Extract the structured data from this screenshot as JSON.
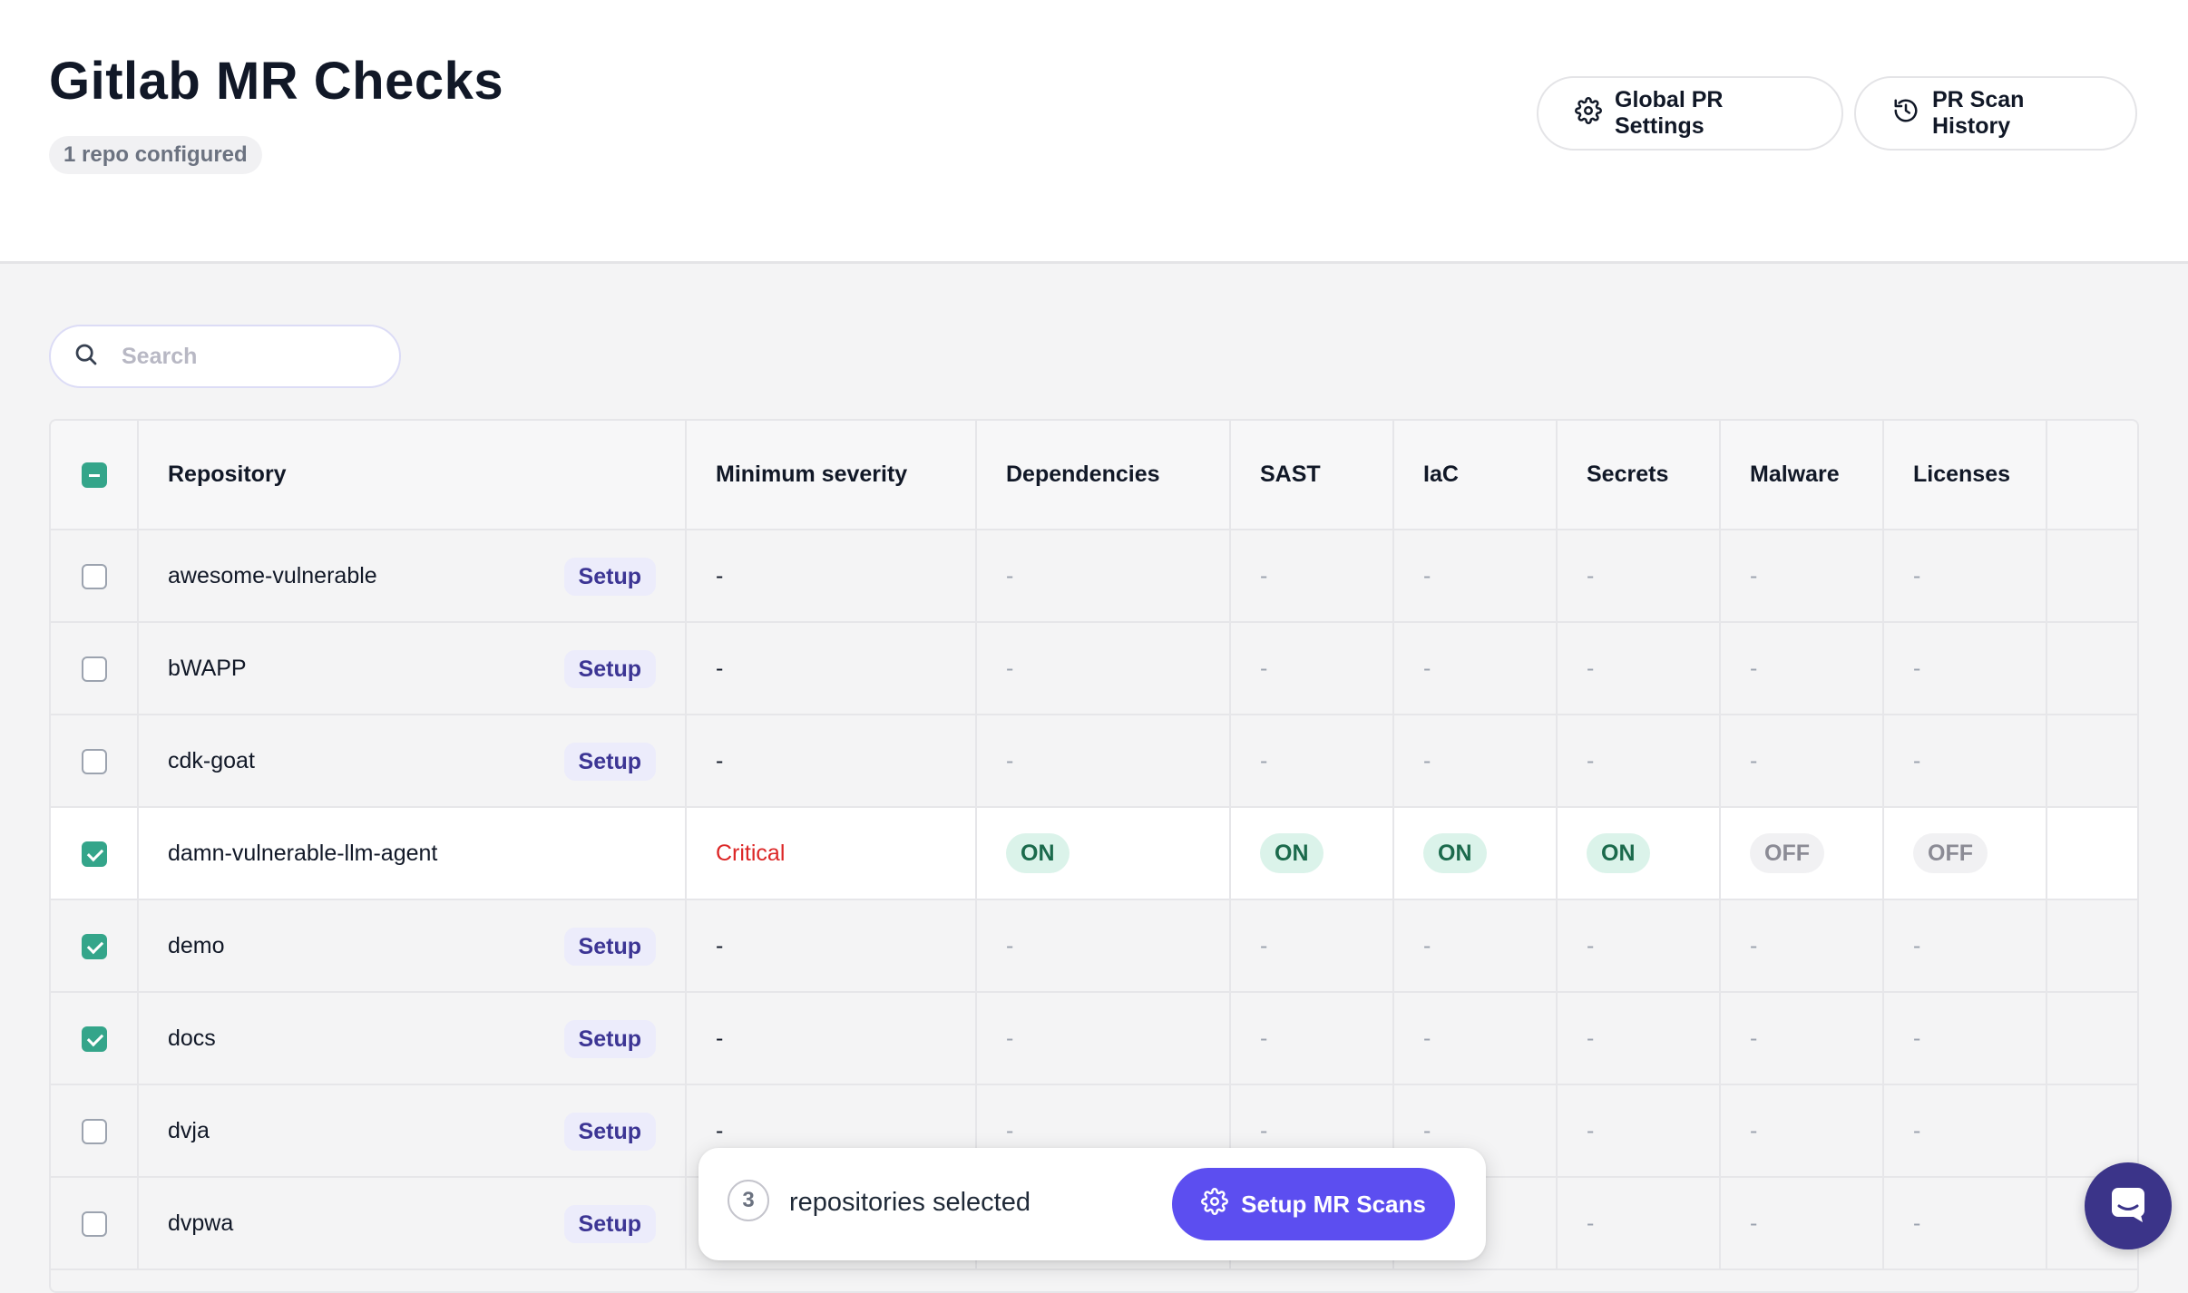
{
  "header": {
    "title": "Gitlab MR Checks",
    "repo_badge": "1 repo configured",
    "global_settings_label": "Global PR Settings",
    "scan_history_label": "PR Scan History"
  },
  "search": {
    "placeholder": "Search",
    "value": ""
  },
  "table": {
    "columns": [
      "Repository",
      "Minimum severity",
      "Dependencies",
      "SAST",
      "IaC",
      "Secrets",
      "Malware",
      "Licenses"
    ],
    "setup_label": "Setup",
    "rows": [
      {
        "name": "awesome-vulnerable",
        "checked": false,
        "configured": false,
        "severity": "-",
        "dependencies": "-",
        "sast": "-",
        "iac": "-",
        "secrets": "-",
        "malware": "-",
        "licenses": "-"
      },
      {
        "name": "bWAPP",
        "checked": false,
        "configured": false,
        "severity": "-",
        "dependencies": "-",
        "sast": "-",
        "iac": "-",
        "secrets": "-",
        "malware": "-",
        "licenses": "-"
      },
      {
        "name": "cdk-goat",
        "checked": false,
        "configured": false,
        "severity": "-",
        "dependencies": "-",
        "sast": "-",
        "iac": "-",
        "secrets": "-",
        "malware": "-",
        "licenses": "-"
      },
      {
        "name": "damn-vulnerable-llm-agent",
        "checked": true,
        "configured": true,
        "severity": "Critical",
        "dependencies": "ON",
        "sast": "ON",
        "iac": "ON",
        "secrets": "ON",
        "malware": "OFF",
        "licenses": "OFF"
      },
      {
        "name": "demo",
        "checked": true,
        "configured": false,
        "severity": "-",
        "dependencies": "-",
        "sast": "-",
        "iac": "-",
        "secrets": "-",
        "malware": "-",
        "licenses": "-"
      },
      {
        "name": "docs",
        "checked": true,
        "configured": false,
        "severity": "-",
        "dependencies": "-",
        "sast": "-",
        "iac": "-",
        "secrets": "-",
        "malware": "-",
        "licenses": "-"
      },
      {
        "name": "dvja",
        "checked": false,
        "configured": false,
        "severity": "-",
        "dependencies": "-",
        "sast": "-",
        "iac": "-",
        "secrets": "-",
        "malware": "-",
        "licenses": "-"
      },
      {
        "name": "dvpwa",
        "checked": false,
        "configured": false,
        "severity": "-",
        "dependencies": "-",
        "sast": "-",
        "iac": "-",
        "secrets": "-",
        "malware": "-",
        "licenses": "-"
      }
    ]
  },
  "selection": {
    "count": "3",
    "text": "repositories selected",
    "action_label": "Setup MR Scans"
  },
  "icons": {
    "settings": "gear-icon",
    "history": "history-icon",
    "search": "search-icon",
    "chat": "chat-icon"
  },
  "colors": {
    "accent": "#5c4ef0",
    "checkbox_checked": "#34a58a",
    "status_on_bg": "#dbf3ea",
    "status_on_text": "#1b6a4c",
    "critical": "#dc2626",
    "chat_launcher": "#3b3489"
  }
}
